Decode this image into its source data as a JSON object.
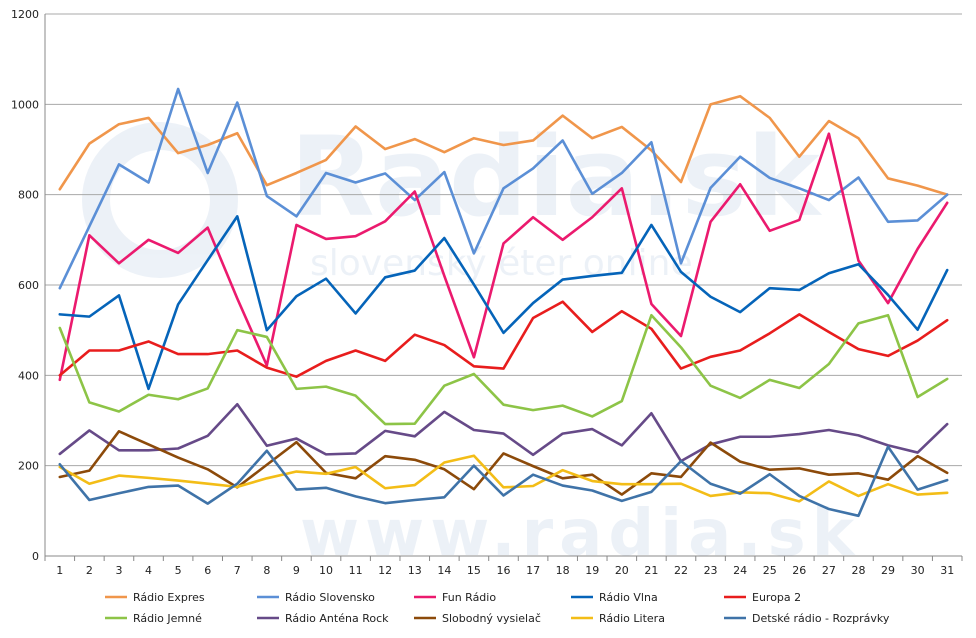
{
  "chart_data": {
    "type": "line",
    "title": "",
    "xlabel": "",
    "ylabel": "",
    "ylim": [
      0,
      1200
    ],
    "yticks": [
      0,
      200,
      400,
      600,
      800,
      1000,
      1200
    ],
    "x": [
      1,
      2,
      3,
      4,
      5,
      6,
      7,
      8,
      9,
      10,
      11,
      12,
      13,
      14,
      15,
      16,
      17,
      18,
      19,
      20,
      21,
      22,
      23,
      24,
      25,
      26,
      27,
      28,
      29,
      30,
      31
    ],
    "grid": "horizontal",
    "legend_position": "bottom",
    "series": [
      {
        "name": "Rádio Expres",
        "color": "#f0964b",
        "values": [
          812,
          913,
          956,
          970,
          892,
          910,
          936,
          821,
          848,
          877,
          951,
          901,
          923,
          894,
          925,
          910,
          920,
          975,
          925,
          950,
          898,
          828,
          1000,
          1018,
          970,
          884,
          963,
          925,
          836,
          820,
          800
        ]
      },
      {
        "name": "Rádio Slovensko",
        "color": "#5b8fd6",
        "values": [
          593,
          730,
          867,
          827,
          1034,
          848,
          1004,
          797,
          752,
          848,
          827,
          847,
          788,
          850,
          670,
          814,
          858,
          920,
          802,
          848,
          916,
          648,
          815,
          884,
          837,
          814,
          788,
          838,
          740,
          743,
          800
        ]
      },
      {
        "name": "Fun Rádio",
        "color": "#eb1a6e",
        "values": [
          390,
          710,
          648,
          700,
          671,
          727,
          570,
          422,
          733,
          702,
          708,
          741,
          807,
          620,
          440,
          692,
          750,
          700,
          750,
          814,
          558,
          487,
          740,
          823,
          720,
          744,
          935,
          654,
          560,
          680,
          782
        ]
      },
      {
        "name": "Rádio Vlna",
        "color": "#0564b9",
        "values": [
          535,
          530,
          577,
          370,
          557,
          655,
          752,
          500,
          575,
          614,
          537,
          617,
          632,
          704,
          601,
          494,
          560,
          612,
          620,
          627,
          733,
          629,
          574,
          540,
          593,
          589,
          626,
          646,
          578,
          501,
          633
        ]
      },
      {
        "name": "Europa 2",
        "color": "#e81d1d",
        "values": [
          400,
          455,
          455,
          475,
          447,
          447,
          455,
          417,
          397,
          432,
          455,
          432,
          490,
          467,
          420,
          415,
          527,
          563,
          496,
          542,
          503,
          415,
          441,
          455,
          493,
          535,
          496,
          458,
          443,
          477,
          522
        ]
      },
      {
        "name": "Rádio Jemné",
        "color": "#8dc447",
        "values": [
          505,
          340,
          320,
          357,
          347,
          371,
          500,
          485,
          370,
          375,
          355,
          292,
          293,
          377,
          403,
          335,
          323,
          333,
          309,
          343,
          533,
          462,
          377,
          350,
          390,
          372,
          425,
          515,
          533,
          352,
          392
        ]
      },
      {
        "name": "Rádio Anténa Rock",
        "color": "#664a88",
        "values": [
          226,
          278,
          234,
          234,
          238,
          266,
          336,
          244,
          260,
          225,
          227,
          277,
          265,
          319,
          279,
          271,
          224,
          271,
          281,
          245,
          316,
          210,
          247,
          264,
          264,
          270,
          279,
          267,
          245,
          229,
          292
        ]
      },
      {
        "name": "Slobodný vysielač",
        "color": "#8c4a0a",
        "values": [
          175,
          189,
          276,
          247,
          218,
          192,
          152,
          202,
          252,
          184,
          172,
          221,
          213,
          192,
          148,
          227,
          199,
          172,
          180,
          136,
          183,
          175,
          251,
          209,
          191,
          194,
          180,
          183,
          169,
          221,
          184
        ]
      },
      {
        "name": "Rádio Litera",
        "color": "#f3bd17",
        "values": [
          197,
          160,
          178,
          173,
          167,
          160,
          153,
          172,
          187,
          182,
          197,
          150,
          157,
          207,
          222,
          152,
          155,
          190,
          166,
          159,
          159,
          160,
          133,
          141,
          139,
          121,
          165,
          133,
          159,
          136,
          140
        ]
      },
      {
        "name": "Detské rádio - Rozprávky",
        "color": "#3f73a8",
        "values": [
          203,
          124,
          139,
          153,
          156,
          116,
          160,
          233,
          147,
          151,
          132,
          117,
          124,
          130,
          200,
          134,
          180,
          156,
          145,
          122,
          142,
          210,
          160,
          138,
          181,
          133,
          104,
          89,
          242,
          147,
          168
        ]
      }
    ],
    "watermark": {
      "logo_text": "Radia.sk",
      "tagline": "slovenský éter online",
      "bottom_text": "www.radia.sk"
    }
  }
}
